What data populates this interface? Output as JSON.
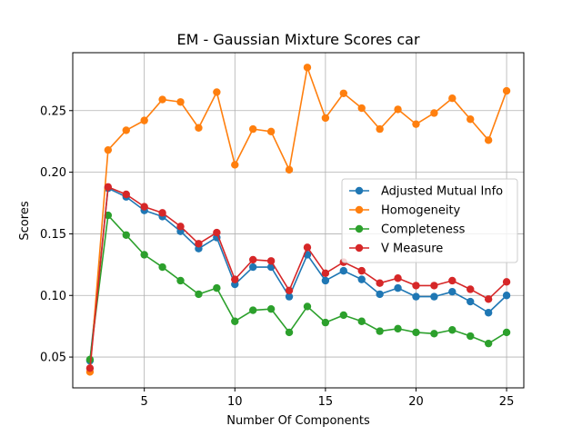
{
  "chart_data": {
    "type": "line",
    "title": "EM - Gaussian Mixture Scores car",
    "xlabel": "Number Of Components",
    "ylabel": "Scores",
    "xlim": [
      1.05,
      25.95
    ],
    "ylim": [
      0.025,
      0.297
    ],
    "xticks": [
      5,
      10,
      15,
      20,
      25
    ],
    "yticks": [
      0.05,
      0.1,
      0.15,
      0.2,
      0.25
    ],
    "ytick_labels": [
      "0.05",
      "0.10",
      "0.15",
      "0.20",
      "0.25"
    ],
    "grid": true,
    "legend_position": "center-right",
    "x": [
      2,
      3,
      4,
      5,
      6,
      7,
      8,
      9,
      10,
      11,
      12,
      13,
      14,
      15,
      16,
      17,
      18,
      19,
      20,
      21,
      22,
      23,
      24,
      25
    ],
    "series": [
      {
        "name": "Adjusted Mutual Info",
        "color": "#1f77b4",
        "values": [
          0.047,
          0.187,
          0.18,
          0.169,
          0.164,
          0.152,
          0.138,
          0.147,
          0.109,
          0.123,
          0.123,
          0.099,
          0.133,
          0.112,
          0.12,
          0.113,
          0.101,
          0.106,
          0.099,
          0.099,
          0.103,
          0.095,
          0.086,
          0.1
        ]
      },
      {
        "name": "Homogeneity",
        "color": "#ff7f0e",
        "values": [
          0.038,
          0.218,
          0.234,
          0.242,
          0.259,
          0.257,
          0.236,
          0.265,
          0.206,
          0.235,
          0.233,
          0.202,
          0.285,
          0.244,
          0.264,
          0.252,
          0.235,
          0.251,
          0.239,
          0.248,
          0.26,
          0.243,
          0.226,
          0.266
        ]
      },
      {
        "name": "Completeness",
        "color": "#2ca02c",
        "values": [
          0.048,
          0.165,
          0.149,
          0.133,
          0.123,
          0.112,
          0.101,
          0.106,
          0.079,
          0.088,
          0.089,
          0.07,
          0.091,
          0.078,
          0.084,
          0.079,
          0.071,
          0.073,
          0.07,
          0.069,
          0.072,
          0.067,
          0.061,
          0.07
        ]
      },
      {
        "name": "V Measure",
        "color": "#d62728",
        "values": [
          0.041,
          0.188,
          0.182,
          0.172,
          0.167,
          0.156,
          0.142,
          0.151,
          0.113,
          0.129,
          0.128,
          0.104,
          0.139,
          0.118,
          0.127,
          0.12,
          0.11,
          0.114,
          0.108,
          0.108,
          0.112,
          0.105,
          0.097,
          0.111
        ]
      }
    ]
  }
}
